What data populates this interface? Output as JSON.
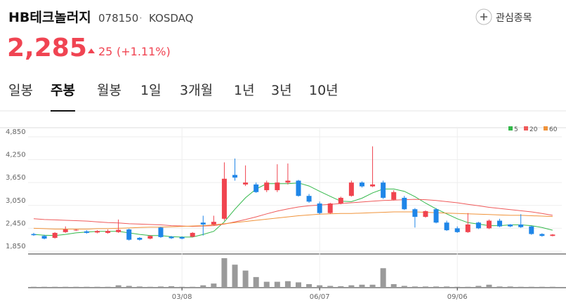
{
  "header": {
    "name": "HB테크놀러지",
    "code": "078150",
    "separator": "·",
    "market": "KOSDAQ",
    "watch_button": "관심종목",
    "price": "2,285",
    "change": "25",
    "change_pct": "(+1.11%)"
  },
  "tabs": [
    {
      "label": "일봉"
    },
    {
      "label": "주봉",
      "selected": true
    },
    {
      "label": "월봉"
    },
    {
      "label": "1일"
    },
    {
      "label": "3개월"
    },
    {
      "label": "1년"
    },
    {
      "label": "3년"
    },
    {
      "label": "10년"
    }
  ],
  "chart_data": {
    "type": "candlestick",
    "categories": [
      null,
      null,
      null,
      null,
      null,
      null,
      null,
      null,
      null,
      null,
      null,
      null,
      null,
      null,
      "03/08",
      null,
      null,
      null,
      null,
      null,
      null,
      null,
      null,
      null,
      null,
      null,
      null,
      "06/07",
      null,
      null,
      null,
      null,
      null,
      null,
      null,
      null,
      null,
      null,
      null,
      null,
      "09/06",
      null,
      null,
      null,
      null,
      null,
      null,
      null,
      null,
      null
    ],
    "open": [
      2300,
      2250,
      2200,
      2350,
      2400,
      2370,
      2340,
      2330,
      2350,
      2420,
      2200,
      2180,
      2470,
      2230,
      2220,
      2230,
      2600,
      2550,
      2700,
      3850,
      3600,
      3600,
      3450,
      3450,
      3650,
      3700,
      3300,
      3100,
      2850,
      3100,
      3300,
      3650,
      3550,
      3650,
      3200,
      3250,
      2950,
      2750,
      2950,
      2600,
      2450,
      2350,
      2600,
      2450,
      2650,
      2550,
      2550,
      2500,
      2300,
      2250
    ],
    "high": [
      2330,
      2280,
      2350,
      2500,
      2430,
      2400,
      2400,
      2420,
      2680,
      2440,
      2220,
      2270,
      2490,
      2250,
      2240,
      2350,
      2780,
      2780,
      4180,
      4280,
      4100,
      3650,
      3700,
      4130,
      4150,
      3720,
      3350,
      3150,
      3120,
      3280,
      3700,
      3680,
      4600,
      3700,
      3450,
      3300,
      2980,
      2920,
      2980,
      2650,
      2500,
      2850,
      2620,
      2680,
      2700,
      2560,
      2820,
      2520,
      2320,
      2300
    ],
    "low": [
      2250,
      2160,
      2180,
      2330,
      2380,
      2310,
      2320,
      2310,
      2330,
      2130,
      2130,
      2160,
      2200,
      2170,
      2160,
      2210,
      2260,
      2530,
      2650,
      3700,
      3560,
      3380,
      3400,
      3400,
      3600,
      3280,
      3120,
      2820,
      2830,
      3080,
      3280,
      3520,
      3530,
      3220,
      3180,
      2930,
      2470,
      2730,
      2580,
      2380,
      2330,
      2330,
      2430,
      2430,
      2480,
      2480,
      2460,
      2280,
      2230,
      2240
    ],
    "close": [
      2270,
      2180,
      2330,
      2420,
      2410,
      2330,
      2380,
      2380,
      2410,
      2150,
      2150,
      2250,
      2220,
      2190,
      2180,
      2330,
      2550,
      2620,
      3750,
      3780,
      3650,
      3400,
      3650,
      3650,
      3700,
      3300,
      3150,
      2850,
      3100,
      3250,
      3650,
      3550,
      3600,
      3250,
      3400,
      2950,
      2750,
      2900,
      2600,
      2400,
      2350,
      2550,
      2450,
      2650,
      2500,
      2500,
      2480,
      2300,
      2250,
      2285
    ],
    "up_color": "#f0444f",
    "down_color": "#1f86e8",
    "series": [
      {
        "name": "5",
        "color": "#33b84a",
        "values": [
          2290,
          2270,
          2260,
          2290,
          2330,
          2350,
          2370,
          2370,
          2370,
          2330,
          2290,
          2260,
          2260,
          2230,
          2220,
          2220,
          2290,
          2370,
          2620,
          2950,
          3250,
          3480,
          3620,
          3620,
          3620,
          3640,
          3560,
          3420,
          3290,
          3160,
          3150,
          3240,
          3380,
          3480,
          3480,
          3420,
          3280,
          3110,
          2960,
          2830,
          2700,
          2600,
          2560,
          2520,
          2520,
          2540,
          2540,
          2520,
          2470,
          2400
        ]
      },
      {
        "name": "20",
        "color": "#ef5a5a",
        "values": [
          2700,
          2680,
          2670,
          2660,
          2650,
          2640,
          2620,
          2600,
          2590,
          2570,
          2560,
          2550,
          2540,
          2520,
          2510,
          2500,
          2510,
          2520,
          2560,
          2620,
          2680,
          2750,
          2830,
          2900,
          2960,
          3010,
          3040,
          3060,
          3080,
          3100,
          3120,
          3140,
          3160,
          3180,
          3190,
          3200,
          3210,
          3200,
          3180,
          3150,
          3120,
          3080,
          3040,
          3000,
          2970,
          2940,
          2910,
          2880,
          2840,
          2790
        ]
      },
      {
        "name": "60",
        "color": "#f0933a",
        "values": [
          2450,
          2440,
          2430,
          2430,
          2430,
          2430,
          2440,
          2440,
          2450,
          2460,
          2470,
          2480,
          2480,
          2490,
          2500,
          2510,
          2520,
          2540,
          2570,
          2600,
          2630,
          2660,
          2690,
          2720,
          2750,
          2780,
          2800,
          2820,
          2830,
          2840,
          2840,
          2850,
          2860,
          2870,
          2880,
          2880,
          2880,
          2870,
          2860,
          2850,
          2840,
          2830,
          2820,
          2810,
          2800,
          2790,
          2790,
          2780,
          2770,
          2760
        ]
      }
    ],
    "volume": [
      3,
      3,
      3,
      3,
      3,
      3,
      3,
      3,
      8,
      6,
      4,
      3,
      4,
      5,
      3,
      3,
      8,
      14,
      100,
      78,
      58,
      36,
      20,
      20,
      22,
      18,
      12,
      8,
      6,
      5,
      8,
      10,
      10,
      66,
      12,
      6,
      4,
      4,
      4,
      4,
      3,
      3,
      6,
      10,
      4,
      4,
      3,
      3,
      3,
      3
    ],
    "volume_ylim": [
      0,
      100
    ],
    "volume_color": "#9a9a9a",
    "ylim": [
      1850,
      4850
    ],
    "yticks": [
      {
        "value": 1850,
        "label": "1,850"
      },
      {
        "value": 2450,
        "label": "2,450"
      },
      {
        "value": 3050,
        "label": "3,050"
      },
      {
        "value": 3650,
        "label": "3,650"
      },
      {
        "value": 4250,
        "label": "4,250"
      },
      {
        "value": 4850,
        "label": "4,850"
      }
    ],
    "grid": true
  }
}
